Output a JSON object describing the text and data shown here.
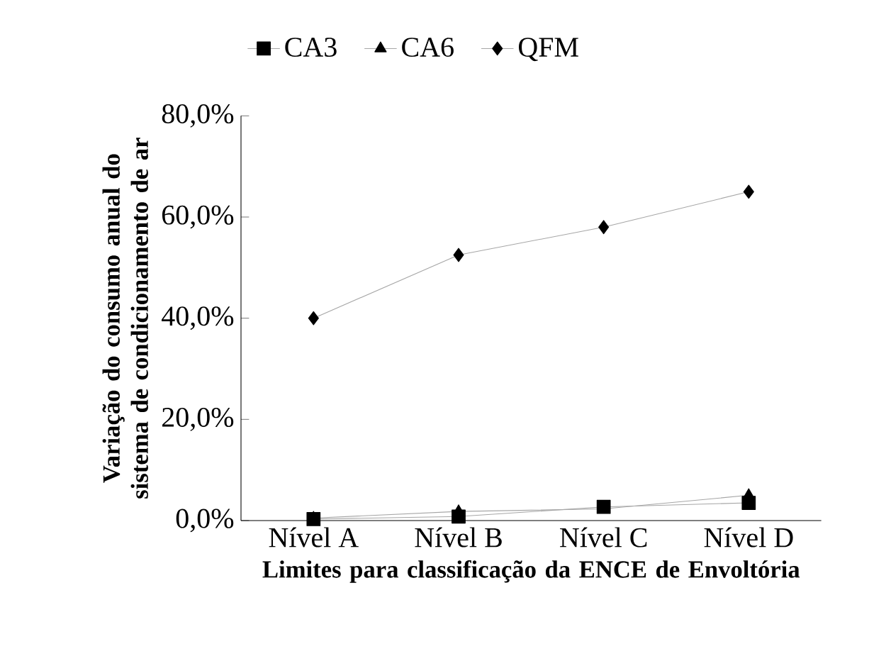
{
  "chart_data": {
    "type": "line",
    "xlabel": "Limites para classificação da ENCE de Envoltória",
    "ylabel": "Variação do consumo anual do sistema de condicionamento de ar",
    "categories": [
      "Nível A",
      "Nível B",
      "Nível C",
      "Nível D"
    ],
    "series": [
      {
        "name": "CA3",
        "color": "#000000",
        "marker": "square",
        "values": [
          0.3,
          0.8,
          2.7,
          3.5
        ]
      },
      {
        "name": "CA6",
        "color": "#000000",
        "marker": "triangle",
        "values": [
          0.5,
          1.8,
          2.3,
          5.0
        ]
      },
      {
        "name": "QFM",
        "color": "#000000",
        "marker": "diamond",
        "values": [
          40.0,
          52.5,
          58.0,
          65.0
        ]
      }
    ],
    "ylim": [
      0,
      80
    ],
    "yticks": [
      {
        "value": 0,
        "label": "0,0%"
      },
      {
        "value": 20,
        "label": "20,0%"
      },
      {
        "value": 40,
        "label": "40,0%"
      },
      {
        "value": 60,
        "label": "60,0%"
      },
      {
        "value": 80,
        "label": "80,0%"
      }
    ],
    "grid": false,
    "legend": "top",
    "line_style": "solid"
  }
}
